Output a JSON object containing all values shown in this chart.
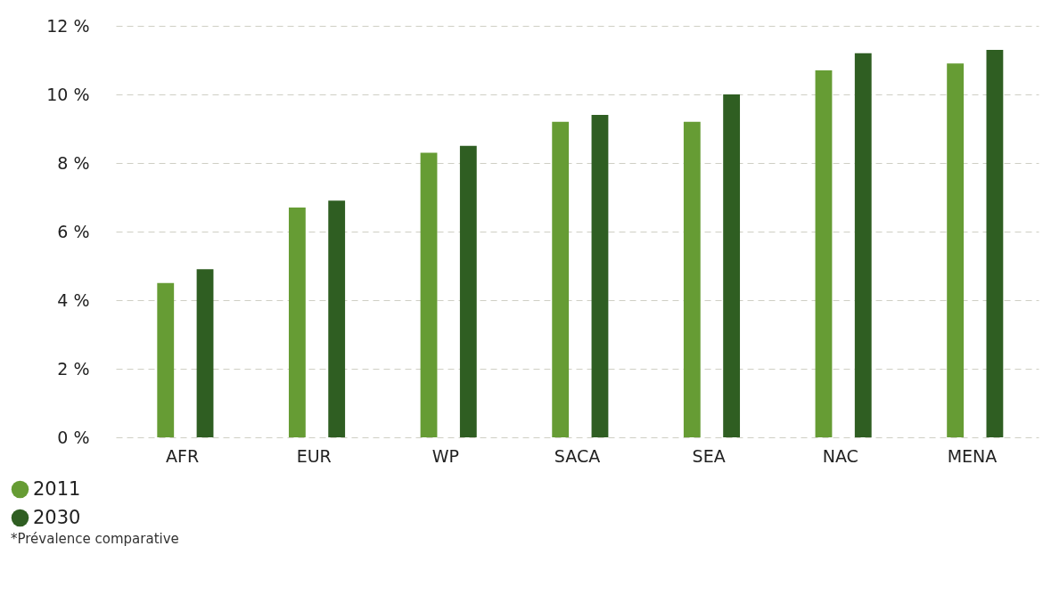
{
  "chart_data": {
    "type": "bar",
    "categories": [
      "AFR",
      "EUR",
      "WP",
      "SACA",
      "SEA",
      "NAC",
      "MENA"
    ],
    "series": [
      {
        "name": "2011",
        "color": "#669c34",
        "values": [
          4.5,
          6.7,
          8.3,
          9.2,
          9.2,
          10.7,
          10.9
        ]
      },
      {
        "name": "2030",
        "color": "#2f5e22",
        "values": [
          4.9,
          6.9,
          8.5,
          9.4,
          10.0,
          11.2,
          11.3
        ]
      }
    ],
    "ylim": [
      0,
      12
    ],
    "yticks": [
      {
        "value": 0,
        "label": "0 %"
      },
      {
        "value": 2,
        "label": "2 %"
      },
      {
        "value": 4,
        "label": "4 %"
      },
      {
        "value": 6,
        "label": "6 %"
      },
      {
        "value": 8,
        "label": "8 %"
      },
      {
        "value": 10,
        "label": "10 %"
      },
      {
        "value": 12,
        "label": "12 %"
      }
    ],
    "grid": "y",
    "legend": "bottom left",
    "annotations": [
      "*Prévalence comparative"
    ]
  }
}
